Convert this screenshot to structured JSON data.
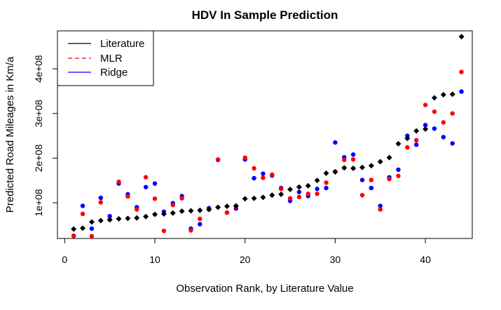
{
  "chart_data": {
    "type": "scatter",
    "title": "HDV In Sample Prediction",
    "xlabel": "Observation Rank, by Literature Value",
    "ylabel": "Predicted Road Mileages in Km/a",
    "xlim": [
      -0.8,
      45.2
    ],
    "ylim": [
      20000000,
      485000000
    ],
    "x_ticks": [
      0,
      10,
      20,
      30,
      40
    ],
    "x_tick_labels": [
      "0",
      "10",
      "20",
      "30",
      "40"
    ],
    "y_ticks": [
      100000000,
      200000000,
      300000000,
      400000000
    ],
    "y_tick_labels": [
      "1e+08",
      "2e+08",
      "3e+08",
      "4e+08"
    ],
    "grid": false,
    "legend_position": "top-left",
    "x": [
      1,
      2,
      3,
      4,
      5,
      6,
      7,
      8,
      9,
      10,
      11,
      12,
      13,
      14,
      15,
      16,
      17,
      18,
      19,
      20,
      21,
      22,
      23,
      24,
      25,
      26,
      27,
      28,
      29,
      30,
      31,
      32,
      33,
      34,
      35,
      36,
      37,
      38,
      39,
      40,
      41,
      42,
      43,
      44
    ],
    "series": [
      {
        "name": "Literature",
        "color": "#000000",
        "legend_line": "solid",
        "marker": "diamond",
        "values": [
          41000000,
          43000000,
          57000000,
          60000000,
          62000000,
          64000000,
          65000000,
          66000000,
          69000000,
          74000000,
          75000000,
          77000000,
          81000000,
          82000000,
          83000000,
          85000000,
          90000000,
          92000000,
          93000000,
          109000000,
          110000000,
          112000000,
          117000000,
          119000000,
          130000000,
          135000000,
          138000000,
          150000000,
          166000000,
          169000000,
          178000000,
          177000000,
          179000000,
          183000000,
          192000000,
          201000000,
          232000000,
          244000000,
          261000000,
          265000000,
          335000000,
          342000000,
          343000000,
          472000000
        ]
      },
      {
        "name": "MLR",
        "color": "#ff0000",
        "legend_line": "dashed",
        "marker": "circle",
        "values": [
          26000000,
          75000000,
          25000000,
          101000000,
          62000000,
          147000000,
          114000000,
          85000000,
          157000000,
          109000000,
          37000000,
          95000000,
          110000000,
          38000000,
          64000000,
          85000000,
          197000000,
          78000000,
          91000000,
          201000000,
          177000000,
          156000000,
          163000000,
          131000000,
          110000000,
          113000000,
          120000000,
          120000000,
          145000000,
          170000000,
          196000000,
          197000000,
          117000000,
          151000000,
          85000000,
          153000000,
          160000000,
          224000000,
          240000000,
          319000000,
          304000000,
          280000000,
          300000000,
          393000000
        ]
      },
      {
        "name": "Ridge",
        "color": "#0000ff",
        "legend_line": "solid",
        "marker": "circle",
        "values": [
          26000000,
          93000000,
          42000000,
          111000000,
          70000000,
          143000000,
          119000000,
          90000000,
          135000000,
          143000000,
          80000000,
          99000000,
          115000000,
          42000000,
          52000000,
          88000000,
          196000000,
          78000000,
          87000000,
          197000000,
          155000000,
          165000000,
          161000000,
          133000000,
          104000000,
          124000000,
          115000000,
          131000000,
          133000000,
          235000000,
          202000000,
          208000000,
          151000000,
          133000000,
          93000000,
          157000000,
          174000000,
          250000000,
          230000000,
          274000000,
          266000000,
          247000000,
          233000000,
          349000000
        ]
      }
    ]
  }
}
